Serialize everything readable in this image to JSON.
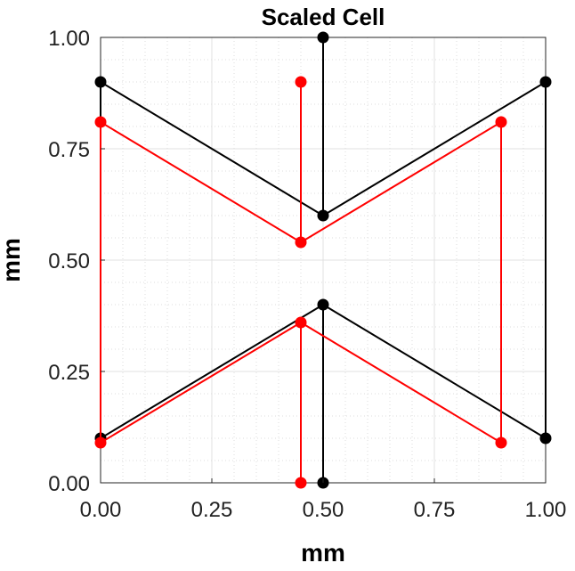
{
  "chart_data": {
    "type": "line",
    "title": "Scaled Cell",
    "xlabel": "mm",
    "ylabel": "mm",
    "xlim": [
      0,
      1
    ],
    "ylim": [
      0,
      1
    ],
    "xticks": [
      "0.00",
      "0.25",
      "0.50",
      "0.75",
      "1.00"
    ],
    "yticks": [
      "0.00",
      "0.25",
      "0.50",
      "0.75",
      "1.00"
    ],
    "grid": true,
    "minor_grid": true,
    "series": [
      {
        "color": "#000000",
        "segments": [
          [
            [
              0.0,
              0.9
            ],
            [
              0.5,
              0.6
            ],
            [
              1.0,
              0.9
            ]
          ],
          [
            [
              0.5,
              0.6
            ],
            [
              0.5,
              1.0
            ]
          ],
          [
            [
              0.0,
              0.9
            ],
            [
              0.0,
              0.1
            ]
          ],
          [
            [
              1.0,
              0.9
            ],
            [
              1.0,
              0.1
            ]
          ],
          [
            [
              0.0,
              0.1
            ],
            [
              0.5,
              0.4
            ],
            [
              1.0,
              0.1
            ]
          ],
          [
            [
              0.5,
              0.4
            ],
            [
              0.5,
              0.0
            ]
          ]
        ],
        "points": [
          [
            0.0,
            0.9
          ],
          [
            0.5,
            0.6
          ],
          [
            1.0,
            0.9
          ],
          [
            0.5,
            1.0
          ],
          [
            0.0,
            0.1
          ],
          [
            0.5,
            0.4
          ],
          [
            1.0,
            0.1
          ],
          [
            0.5,
            0.0
          ]
        ]
      },
      {
        "color": "#ff0000",
        "segments": [
          [
            [
              0.0,
              0.81
            ],
            [
              0.45,
              0.54
            ],
            [
              0.9,
              0.81
            ]
          ],
          [
            [
              0.45,
              0.9
            ],
            [
              0.45,
              0.54
            ]
          ],
          [
            [
              0.0,
              0.81
            ],
            [
              0.0,
              0.09
            ]
          ],
          [
            [
              0.9,
              0.81
            ],
            [
              0.9,
              0.09
            ]
          ],
          [
            [
              0.0,
              0.09
            ],
            [
              0.45,
              0.36
            ],
            [
              0.9,
              0.09
            ]
          ],
          [
            [
              0.45,
              0.36
            ],
            [
              0.45,
              0.0
            ]
          ]
        ],
        "points": [
          [
            0.0,
            0.81
          ],
          [
            0.45,
            0.54
          ],
          [
            0.9,
            0.81
          ],
          [
            0.45,
            0.9
          ],
          [
            0.0,
            0.09
          ],
          [
            0.45,
            0.36
          ],
          [
            0.9,
            0.09
          ],
          [
            0.45,
            0.0
          ]
        ]
      }
    ]
  }
}
